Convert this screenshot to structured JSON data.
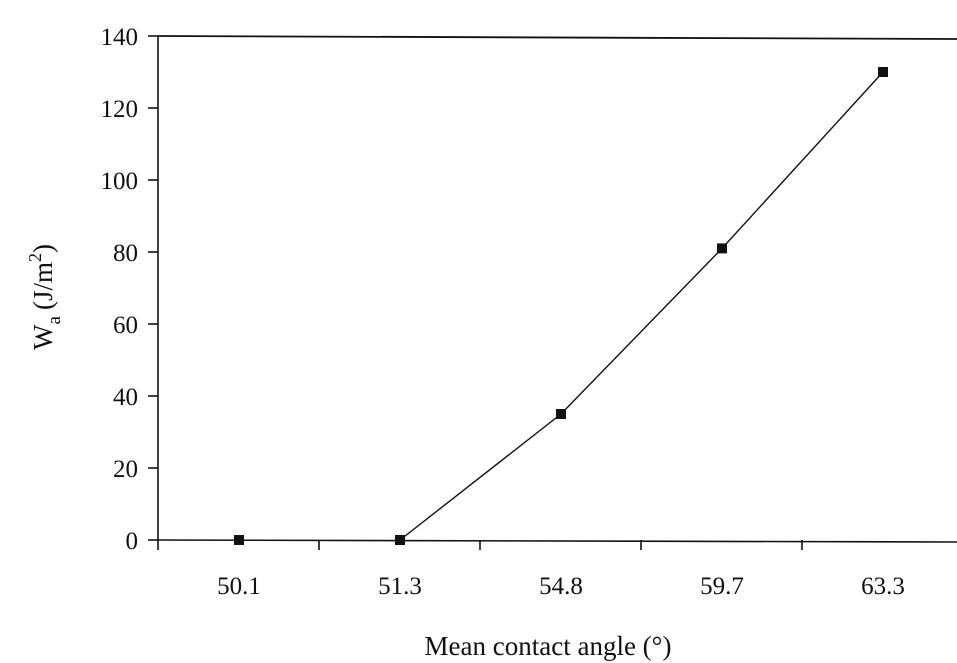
{
  "chart_data": {
    "type": "line",
    "title": "",
    "xlabel": "Mean contact angle (°)",
    "ylabel": "W",
    "ylabel_subscript": "a",
    "ylabel_unit": "(J/m",
    "ylabel_unit_superscript": "2",
    "ylabel_unit_close": ")",
    "categories": [
      "50.1",
      "51.3",
      "54.8",
      "59.7",
      "63.3"
    ],
    "ylim": [
      0,
      140
    ],
    "yticks": [
      "0",
      "20",
      "40",
      "60",
      "80",
      "100",
      "120",
      "140"
    ],
    "grid": false,
    "series": [
      {
        "values": [
          0,
          0,
          35,
          81,
          130
        ],
        "marker": "square",
        "connected_from_index": 1
      }
    ],
    "colors": {
      "line": "#111111",
      "marker": "#111111"
    }
  }
}
